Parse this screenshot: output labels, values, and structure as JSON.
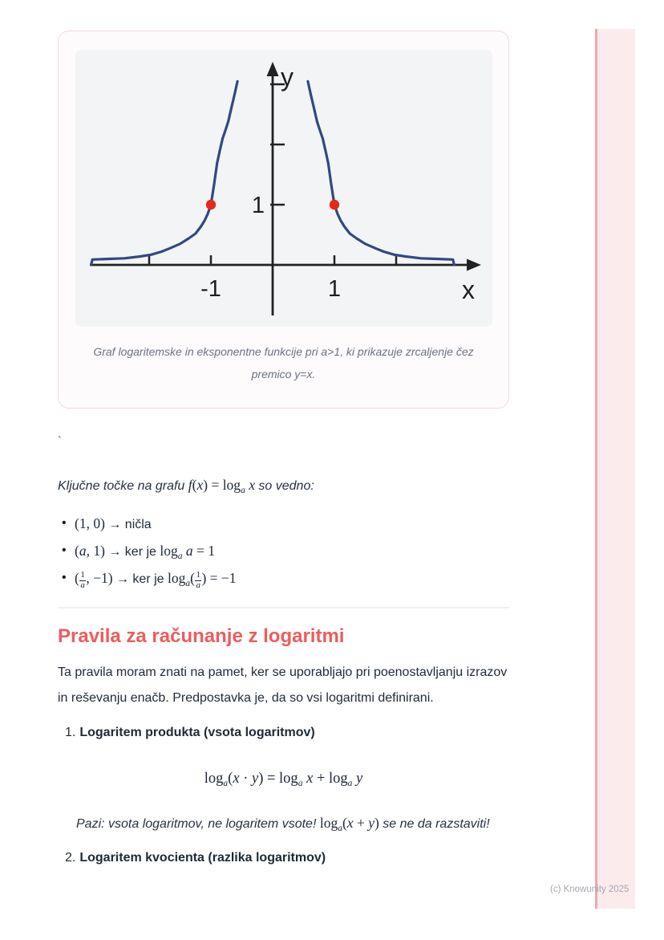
{
  "page": {
    "background": "#ffffff",
    "accent_bar_color": "#fcebec",
    "accent_bar_edge_color": "#eba9af",
    "heading_color": "#ee5c5c"
  },
  "figure": {
    "caption": "Graf logaritemske in eksponentne funkcije pri a>1, ki prikazuje zrcaljenje čez premico y=x."
  },
  "stray_mark": "`",
  "key_points": {
    "intro_pre": "Ključne točke na grafu ",
    "intro_math": "*f*(*x*) = log_[a] *x*",
    "intro_post": " so vedno:",
    "items": [
      {
        "segments": [
          {
            "math": "(1, 0)"
          },
          {
            "text": " → ničla"
          }
        ]
      },
      {
        "segments": [
          {
            "math": "(*a*, 1)"
          },
          {
            "text": " → ker je "
          },
          {
            "math": "log_[a] *a* = 1"
          }
        ]
      },
      {
        "segments": [
          {
            "math": "(#[1/*a*], −1)"
          },
          {
            "text": " → ker je "
          },
          {
            "math": "log_[a](#[1/*a*]) = −1"
          }
        ]
      }
    ]
  },
  "section": {
    "heading": "Pravila za računanje z logaritmi",
    "paragraph": "Ta pravila moram znati na pamet, ker se uporabljajo pri poenostavljanju izrazov in reševanju enačb. Predpostavka je, da so vsi logaritmi definirani.",
    "rules": [
      {
        "number": "1.",
        "title": "Logaritem produkta (vsota logaritmov)"
      },
      {
        "number": "2.",
        "title": "Logaritem kvocienta (razlika logaritmov)"
      }
    ],
    "product_formula": "log_[a](*x* · *y*) = log_[a] *x* + log_[a] *y*",
    "pazi_pre": "Pazi: vsota logaritmov, ne logaritem vsote! ",
    "pazi_math": "log_[a](*x* + *y*)",
    "pazi_post": " se ne da razstaviti!"
  },
  "footer": {
    "text": "(c) Knowunity 2025"
  },
  "chart_data": {
    "type": "line",
    "title": "",
    "xlabel": "x",
    "ylabel": "y",
    "xlim": [
      -3.05,
      3.3
    ],
    "ylim": [
      -0.95,
      3.45
    ],
    "grid": false,
    "legend": "none",
    "axis_color": "#222222",
    "curve_color": "#31497f",
    "x_ticks": [
      -2,
      -1,
      1,
      2
    ],
    "x_tick_labels": [
      {
        "v": -1,
        "label": "-1"
      },
      {
        "v": 1,
        "label": "1"
      }
    ],
    "y_ticks": [
      1,
      2,
      3
    ],
    "y_tick_labels": [
      {
        "v": 1,
        "label": "1"
      }
    ],
    "series": [
      {
        "name": "curve-left-branch",
        "points": [
          [
            -2.94,
            0.0
          ],
          [
            -2.92,
            0.09
          ],
          [
            -2.65,
            0.1
          ],
          [
            -2.4,
            0.11
          ],
          [
            -2.15,
            0.14
          ],
          [
            -1.97,
            0.17
          ],
          [
            -1.8,
            0.22
          ],
          [
            -1.68,
            0.27
          ],
          [
            -1.5,
            0.35
          ],
          [
            -1.36,
            0.44
          ],
          [
            -1.25,
            0.52
          ],
          [
            -1.16,
            0.64
          ],
          [
            -1.1,
            0.74
          ],
          [
            -1.05,
            0.85
          ],
          [
            -1.0,
            1.0
          ],
          [
            -0.95,
            1.33
          ],
          [
            -0.9,
            1.69
          ],
          [
            -0.86,
            1.88
          ],
          [
            -0.81,
            2.1
          ],
          [
            -0.77,
            2.22
          ],
          [
            -0.72,
            2.38
          ],
          [
            -0.67,
            2.6
          ],
          [
            -0.62,
            2.82
          ],
          [
            -0.57,
            3.05
          ]
        ]
      },
      {
        "name": "curve-right-branch",
        "points": [
          [
            0.57,
            3.05
          ],
          [
            0.62,
            2.82
          ],
          [
            0.67,
            2.6
          ],
          [
            0.72,
            2.38
          ],
          [
            0.77,
            2.22
          ],
          [
            0.81,
            2.1
          ],
          [
            0.86,
            1.88
          ],
          [
            0.9,
            1.69
          ],
          [
            0.95,
            1.33
          ],
          [
            1.0,
            1.0
          ],
          [
            1.05,
            0.85
          ],
          [
            1.1,
            0.74
          ],
          [
            1.16,
            0.64
          ],
          [
            1.25,
            0.52
          ],
          [
            1.36,
            0.44
          ],
          [
            1.5,
            0.35
          ],
          [
            1.68,
            0.27
          ],
          [
            1.8,
            0.22
          ],
          [
            1.97,
            0.17
          ],
          [
            2.15,
            0.14
          ],
          [
            2.4,
            0.11
          ],
          [
            2.65,
            0.1
          ],
          [
            2.92,
            0.09
          ],
          [
            2.94,
            0.0
          ]
        ]
      }
    ],
    "markers": {
      "name": "key-points",
      "color": "#e8281b",
      "points": [
        [
          -1,
          1
        ],
        [
          1,
          1
        ]
      ]
    }
  }
}
